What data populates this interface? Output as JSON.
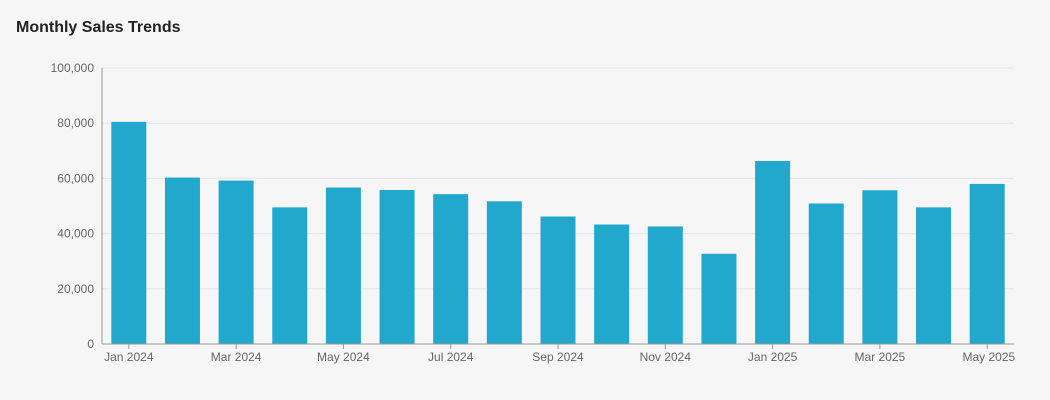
{
  "chart_data": {
    "type": "bar",
    "title": "Monthly Sales Trends",
    "xlabel": "",
    "ylabel": "",
    "categories": [
      "Jan 2024",
      "Feb 2024",
      "Mar 2024",
      "Apr 2024",
      "May 2024",
      "Jun 2024",
      "Jul 2024",
      "Aug 2024",
      "Sep 2024",
      "Oct 2024",
      "Nov 2024",
      "Dec 2024",
      "Jan 2025",
      "Feb 2025",
      "Mar 2025",
      "Apr 2025",
      "May 2025"
    ],
    "x_tick_labels": [
      "Jan 2024",
      "Mar 2024",
      "May 2024",
      "Jul 2024",
      "Sep 2024",
      "Nov 2024",
      "Jan 2025",
      "Mar 2025",
      "May 2025"
    ],
    "values": [
      80500,
      60300,
      59200,
      49500,
      56700,
      55800,
      54300,
      51700,
      46200,
      43300,
      42600,
      32700,
      66300,
      50900,
      55700,
      49500,
      58000
    ],
    "ylim": [
      0,
      100000
    ],
    "y_ticks": [
      0,
      20000,
      40000,
      60000,
      80000,
      100000
    ],
    "y_tick_labels": [
      "0",
      "20,000",
      "40,000",
      "60,000",
      "80,000",
      "100,000"
    ],
    "grid": true,
    "legend": "none",
    "colors": {
      "bar": "#22a8cc",
      "grid": "#e3e6ea",
      "axis": "#999999",
      "text": "#666666",
      "title": "#222222"
    }
  }
}
